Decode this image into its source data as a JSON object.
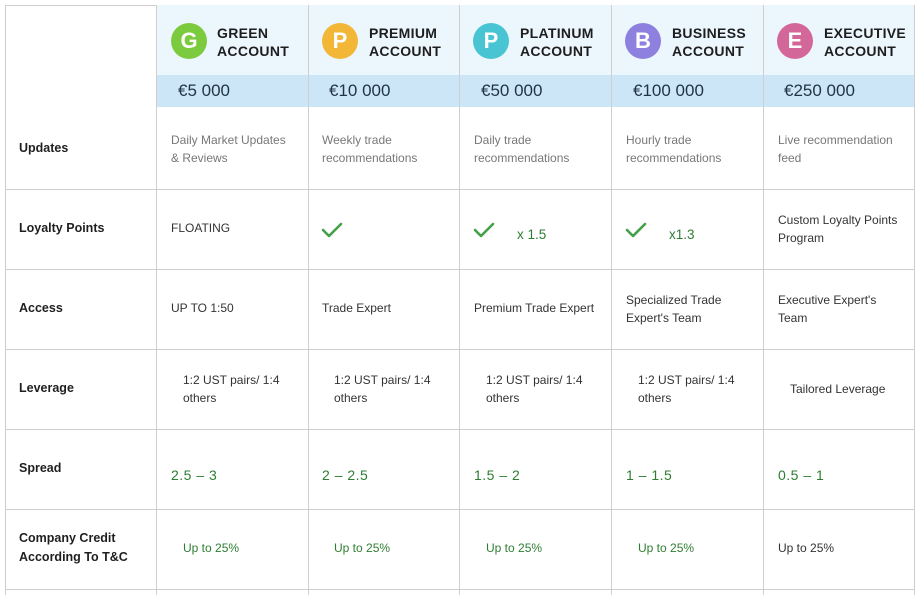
{
  "accounts": [
    {
      "badge": "G",
      "name_line1": "GREEN",
      "name_line2": "ACCOUNT",
      "price": "€5 000",
      "color": "#7ccb3f"
    },
    {
      "badge": "P",
      "name_line1": "PREMIUM",
      "name_line2": "ACCOUNT",
      "price": "€10 000",
      "color": "#f2b736"
    },
    {
      "badge": "P",
      "name_line1": "PLATINUM",
      "name_line2": "ACCOUNT",
      "price": "€50 000",
      "color": "#49c4d3"
    },
    {
      "badge": "B",
      "name_line1": "BUSINESS",
      "name_line2": "ACCOUNT",
      "price": "€100 000",
      "color": "#8e80de"
    },
    {
      "badge": "E",
      "name_line1": "EXECUTIVE",
      "name_line2": "ACCOUNT",
      "price": "€250 000",
      "color": "#d4679a"
    }
  ],
  "rows": {
    "updates": {
      "label": "Updates",
      "cells": [
        [
          "Daily Market Updates",
          "& Reviews"
        ],
        [
          "Weekly trade",
          "recommendations"
        ],
        [
          "Daily trade",
          "recommendations"
        ],
        [
          "Hourly trade",
          "recommendations"
        ],
        [
          "Live recommendation",
          "feed"
        ]
      ]
    },
    "loyalty": {
      "label": "Loyalty Points",
      "green_text": "FLOATING",
      "platinum_multiplier": "x 1.5",
      "business_multiplier": "x1.3",
      "executive": [
        "Custom Loyalty Points",
        "Program"
      ]
    },
    "access": {
      "label": "Access",
      "cells": [
        [
          "UP TO 1:50"
        ],
        [
          "Trade Expert"
        ],
        [
          "Premium Trade Expert"
        ],
        [
          "Specialized Trade",
          "Expert's Team"
        ],
        [
          "Executive Expert's",
          "Team"
        ]
      ]
    },
    "leverage": {
      "label": "Leverage",
      "cells": [
        [
          "1:2 UST pairs/ 1:4",
          "others"
        ],
        [
          "1:2 UST pairs/ 1:4",
          "others"
        ],
        [
          "1:2 UST pairs/ 1:4",
          "others"
        ],
        [
          "1:2 UST pairs/ 1:4",
          "others"
        ],
        [
          "Tailored Leverage"
        ]
      ]
    },
    "spread": {
      "label": "Spread",
      "cells": [
        "2.5 – 3",
        "2 – 2.5",
        "1.5 – 2",
        "1 – 1.5",
        "0.5 – 1"
      ]
    },
    "credit": {
      "label_line1": "Company Credit",
      "label_line2": "According To T&C",
      "cells": [
        "Up to 25%",
        "Up to 25%",
        "Up to 25%",
        "Up to 25%",
        "Up to 25%"
      ]
    }
  }
}
